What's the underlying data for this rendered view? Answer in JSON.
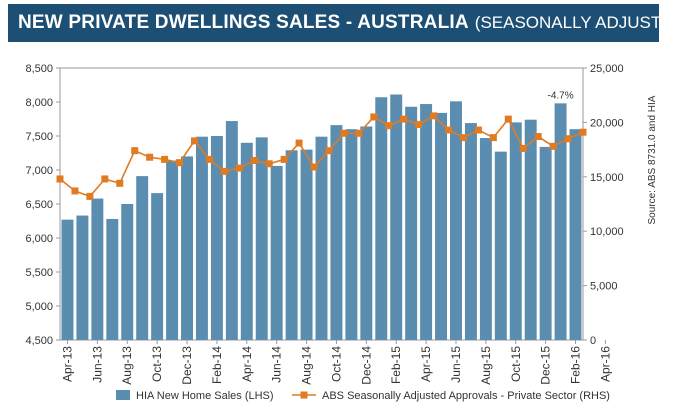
{
  "header": {
    "title_main": "NEW PRIVATE DWELLINGS SALES -  AUSTRALIA",
    "title_sub": "(SEASONALLY ADJUSTED)"
  },
  "source_note": "Source: ABS 8731.0 and HIA",
  "annotation": "-4.7%",
  "colors": {
    "bar": "#5b8db0",
    "line": "#e07b22",
    "title_bg": "#1d4f74",
    "axis_text": "#333333"
  },
  "chart_data": {
    "type": "bar",
    "x_tick_labels": [
      "Apr-13",
      "Jun-13",
      "Aug-13",
      "Oct-13",
      "Dec-13",
      "Feb-14",
      "Apr-14",
      "Jun-14",
      "Aug-14",
      "Oct-14",
      "Dec-14",
      "Feb-15",
      "Apr-15",
      "Jun-15",
      "Aug-15",
      "Oct-15",
      "Dec-15",
      "Feb-16",
      "Apr-16"
    ],
    "y_left": {
      "min": 4500,
      "max": 8500,
      "step": 500,
      "ticks": [
        "4,500",
        "5,000",
        "5,500",
        "6,000",
        "6,500",
        "7,000",
        "7,500",
        "8,000",
        "8,500"
      ]
    },
    "y_right": {
      "min": 0,
      "max": 25000,
      "step": 5000,
      "ticks": [
        "0",
        "5,000",
        "10,000",
        "15,000",
        "20,000",
        "25,000"
      ]
    },
    "series": [
      {
        "name": "HIA New Home Sales (LHS)",
        "type": "bar",
        "axis": "left",
        "values": [
          6270,
          6330,
          6580,
          6280,
          6500,
          6910,
          6660,
          7140,
          7200,
          7490,
          7500,
          7720,
          7400,
          7480,
          7060,
          7290,
          7300,
          7490,
          7660,
          7600,
          7640,
          8070,
          8110,
          7930,
          7970,
          7840,
          8010,
          7690,
          7470,
          7270,
          7700,
          7740,
          7340,
          7980,
          7600
        ]
      },
      {
        "name": "ABS Seasonally Adjusted Approvals - Private Sector (RHS)",
        "type": "line",
        "axis": "right",
        "values": [
          14800,
          13700,
          13200,
          14800,
          14400,
          17400,
          16800,
          16600,
          16300,
          18300,
          16600,
          15500,
          15800,
          16500,
          16200,
          16600,
          18100,
          15900,
          17400,
          19000,
          19000,
          20500,
          19700,
          20300,
          19800,
          20600,
          19300,
          18600,
          19300,
          18600,
          20300,
          17600,
          18700,
          17800,
          18500,
          19100
        ]
      }
    ]
  }
}
